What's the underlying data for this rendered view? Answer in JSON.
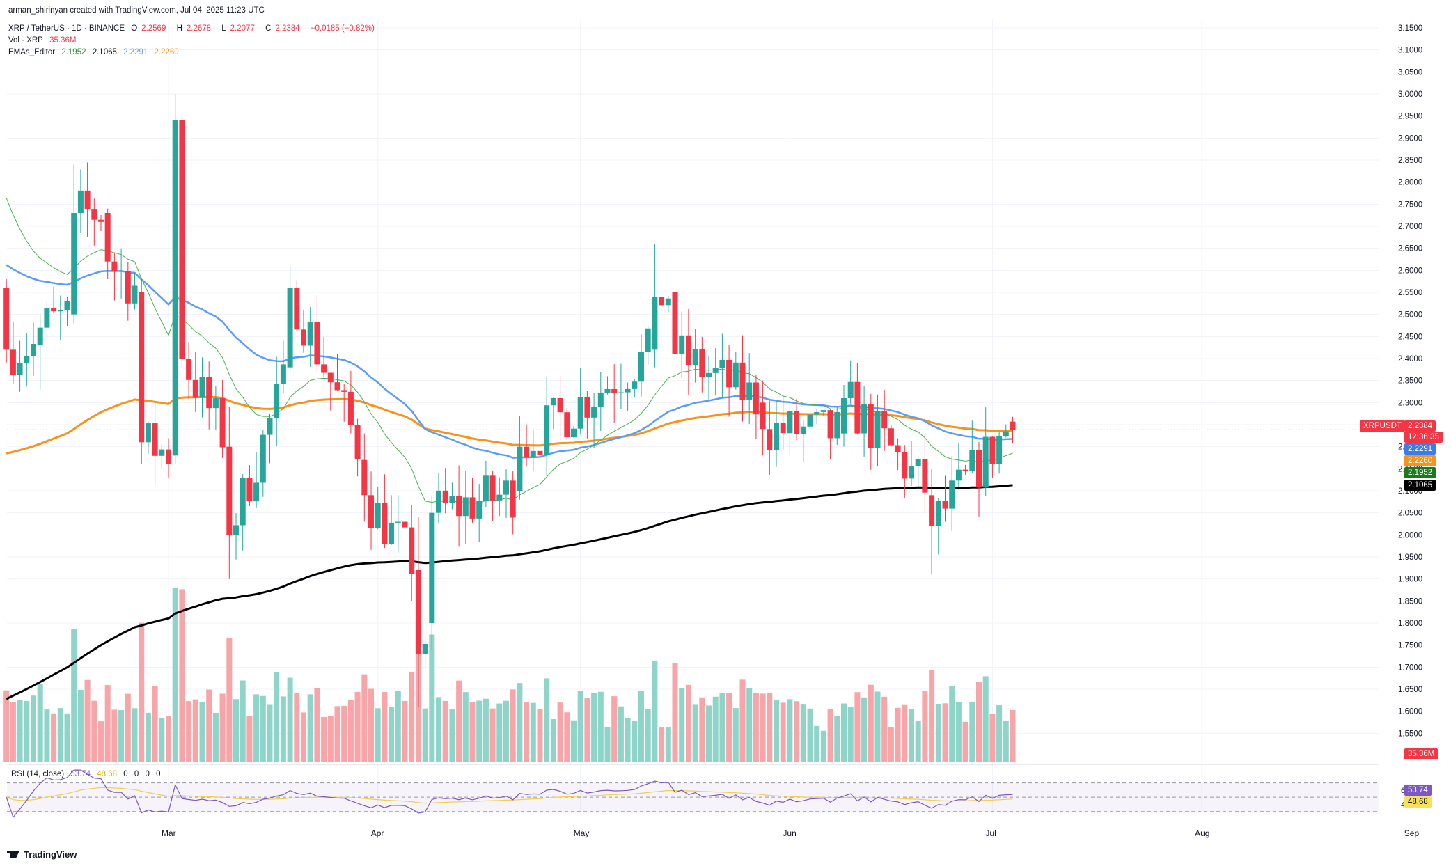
{
  "header": {
    "credit": "arman_shirinyan created with TradingView.com, Jul 04, 2025 11:23 UTC",
    "symbol": "XRP / TetherUS · 1D · BINANCE",
    "o_label": "O",
    "o": "2.2569",
    "h_label": "H",
    "h": "2.2678",
    "l_label": "L",
    "l": "2.2077",
    "c_label": "C",
    "c": "2.2384",
    "change": "−0.0185 (−0.82%)",
    "vol_label": "Vol · XRP",
    "vol_value": "35.36M",
    "ema_label": "EMAs_Editor",
    "ema_values": [
      "2.1952",
      "2.1065",
      "2.2291",
      "2.2260"
    ]
  },
  "rsi_header": {
    "label": "RSI (14, close)",
    "rsi": "53.74",
    "ma": "48.68",
    "zeros": [
      "0",
      "0",
      "0",
      "0"
    ]
  },
  "price_tags": {
    "symbol": "XRPUSDT",
    "last": "2.2384",
    "countdown": "12:36:35",
    "ema_blue": "2.2291",
    "ema_orange": "2.2260",
    "ema_green": "2.1952",
    "ema_black": "2.1065",
    "volume": "35.36M",
    "rsi": "53.74",
    "rsi_ma": "48.68"
  },
  "colors": {
    "up": "#26a69a",
    "down": "#f23645",
    "vol_up": "#8fd4c8",
    "vol_down": "#f7a5a9",
    "ema_blue": "#5b9cf6",
    "ema_orange": "#f7931a",
    "ema_green": "#4caf50",
    "ema_black": "#000000",
    "rsi_line": "#7e57c2",
    "rsi_ma": "#f0d04a"
  },
  "brand": "TradingView",
  "chart_data": {
    "type": "candlestick",
    "title": "XRP / TetherUS · 1D · BINANCE",
    "ylim": [
      1.5,
      3.15
    ],
    "y_ticks": [
      "3.1500",
      "3.1000",
      "3.0500",
      "3.0000",
      "2.9500",
      "2.9000",
      "2.8500",
      "2.8000",
      "2.7500",
      "2.7000",
      "2.6500",
      "2.6000",
      "2.5500",
      "2.5000",
      "2.4500",
      "2.4000",
      "2.3500",
      "2.3000",
      "2.2500",
      "2.2000",
      "2.1500",
      "2.1000",
      "2.0500",
      "2.0000",
      "1.9500",
      "1.9000",
      "1.8500",
      "1.8000",
      "1.7500",
      "1.7000",
      "1.6500",
      "1.6000",
      "1.5500"
    ],
    "x_ticks": [
      "Mar",
      "Apr",
      "May",
      "Jun",
      "Jul",
      "Aug",
      "Sep"
    ],
    "candles_approx": [
      {
        "date": "2025-02-05",
        "o": 2.56,
        "h": 2.58,
        "l": 2.39,
        "c": 2.42
      },
      {
        "date": "2025-02-10",
        "o": 2.43,
        "h": 2.5,
        "l": 2.33,
        "c": 2.47
      },
      {
        "date": "2025-02-15",
        "o": 2.5,
        "h": 2.84,
        "l": 2.48,
        "c": 2.73
      },
      {
        "date": "2025-02-20",
        "o": 2.73,
        "h": 2.74,
        "l": 2.58,
        "c": 2.62
      },
      {
        "date": "2025-02-25",
        "o": 2.55,
        "h": 2.58,
        "l": 2.16,
        "c": 2.21
      },
      {
        "date": "2025-03-02",
        "o": 2.18,
        "h": 3.0,
        "l": 2.16,
        "c": 2.94
      },
      {
        "date": "2025-03-03",
        "o": 2.94,
        "h": 2.95,
        "l": 2.38,
        "c": 2.4
      },
      {
        "date": "2025-03-10",
        "o": 2.2,
        "h": 2.29,
        "l": 1.9,
        "c": 2.0
      },
      {
        "date": "2025-03-19",
        "o": 2.38,
        "h": 2.61,
        "l": 2.37,
        "c": 2.56
      },
      {
        "date": "2025-03-30",
        "o": 2.17,
        "h": 2.23,
        "l": 2.03,
        "c": 2.09
      },
      {
        "date": "2025-04-07",
        "o": 1.92,
        "h": 2.04,
        "l": 1.61,
        "c": 1.73
      },
      {
        "date": "2025-04-09",
        "o": 1.8,
        "h": 2.09,
        "l": 1.74,
        "c": 2.05
      },
      {
        "date": "2025-04-22",
        "o": 2.1,
        "h": 2.27,
        "l": 2.08,
        "c": 2.2
      },
      {
        "date": "2025-05-12",
        "o": 2.42,
        "h": 2.66,
        "l": 2.38,
        "c": 2.54
      },
      {
        "date": "2025-05-15",
        "o": 2.55,
        "h": 2.62,
        "l": 2.37,
        "c": 2.41
      },
      {
        "date": "2025-05-28",
        "o": 2.3,
        "h": 2.35,
        "l": 2.18,
        "c": 2.24
      },
      {
        "date": "2025-06-09",
        "o": 2.23,
        "h": 2.34,
        "l": 2.2,
        "c": 2.31
      },
      {
        "date": "2025-06-22",
        "o": 2.09,
        "h": 2.15,
        "l": 1.91,
        "c": 2.02
      },
      {
        "date": "2025-07-04",
        "o": 2.2569,
        "h": 2.2678,
        "l": 2.2077,
        "c": 2.2384
      }
    ],
    "ema_last": {
      "ema_blue": 2.2291,
      "ema_orange": 2.226,
      "ema_green": 2.1952,
      "ema_black": 2.1065
    },
    "rsi": {
      "ylim_labels": [
        "60.00",
        "40.00"
      ],
      "last": 53.74,
      "ma_last": 48.68
    }
  }
}
